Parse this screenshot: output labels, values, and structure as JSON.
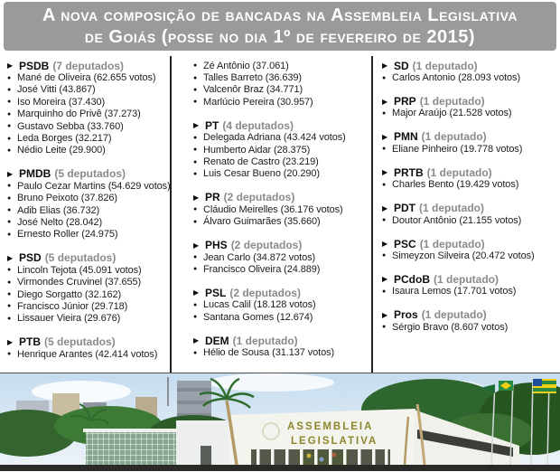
{
  "title": {
    "line1": "A nova composição de bancadas na Assembleia Legislativa",
    "line2": "de Goiás (posse no dia 1º de fevereiro de 2015)"
  },
  "icons": {
    "party_bullet": "▶",
    "member_bullet": "●"
  },
  "columns": [
    {
      "sections": [
        {
          "party": "PSDB",
          "seats": "(7 deputados)",
          "members": [
            "Mané de Oliveira (62.655 votos)",
            "José Vitti (43.867)",
            "Iso Moreira (37.430)",
            "Marquinho do Privê (37.273)",
            "Gustavo Sebba (33.760)",
            "Leda Borges (32.217)",
            "Nédio Leite (29.900)"
          ]
        },
        {
          "party": "PMDB",
          "seats": "(5 deputados)",
          "members": [
            "Paulo Cezar Martins (54.629 votos)",
            "Bruno Peixoto (37.826)",
            "Adib Elias (36.732)",
            "José Nelto (28.042)",
            "Ernesto Roller (24.975)"
          ]
        },
        {
          "party": "PSD",
          "seats": "(5 deputados)",
          "members": [
            "Lincoln Tejota (45.091 votos)",
            "Virmondes Cruvinel (37.655)",
            "Diego Sorgatto (32.162)",
            "Francisco Júnior (29.718)",
            "Lissauer Vieira (29.676)"
          ]
        },
        {
          "party": "PTB",
          "seats": "(5 deputados)",
          "members": [
            "Henrique Arantes (42.414 votos)"
          ]
        }
      ]
    },
    {
      "sections": [
        {
          "party": "",
          "seats": "",
          "members": [
            "Zé Antônio (37.061)",
            "Talles Barreto (36.639)",
            "Valcenôr Braz (34.771)",
            "Marlúcio Pereira (30.957)"
          ]
        },
        {
          "party": "PT",
          "seats": "(4 deputados)",
          "members": [
            "Delegada Adriana (43.424 votos)",
            "Humberto Aidar (28.375)",
            "Renato de Castro (23.219)",
            "Luis Cesar Bueno (20.290)"
          ]
        },
        {
          "party": "PR",
          "seats": "(2 deputados)",
          "members": [
            "Cláudio Meirelles (36.176 votos)",
            "Álvaro Guimarães (35.660)"
          ]
        },
        {
          "party": "PHS",
          "seats": "(2 deputados)",
          "members": [
            "Jean Carlo (34.872 votos)",
            "Francisco Oliveira (24.889)"
          ]
        },
        {
          "party": "PSL",
          "seats": "(2 deputados)",
          "members": [
            "Lucas Calil (18.128 votos)",
            "Santana Gomes (12.674)"
          ]
        },
        {
          "party": "DEM",
          "seats": "(1 deputado)",
          "members": [
            "Hélio de Sousa (31.137 votos)"
          ]
        }
      ]
    },
    {
      "sections": [
        {
          "party": "SD",
          "seats": "(1 deputado)",
          "members": [
            "Carlos Antonio (28.093 votos)"
          ]
        },
        {
          "party": "PRP",
          "seats": "(1 deputado)",
          "members": [
            "Major Araújo (21.528 votos)"
          ]
        },
        {
          "party": "PMN",
          "seats": "(1 deputado)",
          "members": [
            "Eliane Pinheiro (19.778 votos)"
          ]
        },
        {
          "party": "PRTB",
          "seats": "(1 deputado)",
          "members": [
            "Charles Bento (19.429 votos)"
          ]
        },
        {
          "party": "PDT",
          "seats": "(1 deputado)",
          "members": [
            "Doutor Antônio (21.155 votos)"
          ]
        },
        {
          "party": "PSC",
          "seats": "(1 deputado)",
          "members": [
            "Simeyzon Silveira (20.472 votos)"
          ]
        },
        {
          "party": "PCdoB",
          "seats": "(1 deputado)",
          "members": [
            "Isaura Lemos (17.701 votos)"
          ]
        },
        {
          "party": "Pros",
          "seats": "(1 deputado)",
          "members": [
            "Sérgio Bravo (8.607 votos)"
          ]
        }
      ]
    }
  ],
  "photo": {
    "sign_line1": "ASSEMBLEIA",
    "sign_line2": "LEGISLATIVA"
  },
  "colors": {
    "banner_bg": "#9a9a9a",
    "banner_text": "#ffffff",
    "party_name": "#0d0d0d",
    "seats_text": "#8a8a8a",
    "member_text": "#1c1c1c",
    "divider": "#222222",
    "sign_text": "#8c872c"
  }
}
